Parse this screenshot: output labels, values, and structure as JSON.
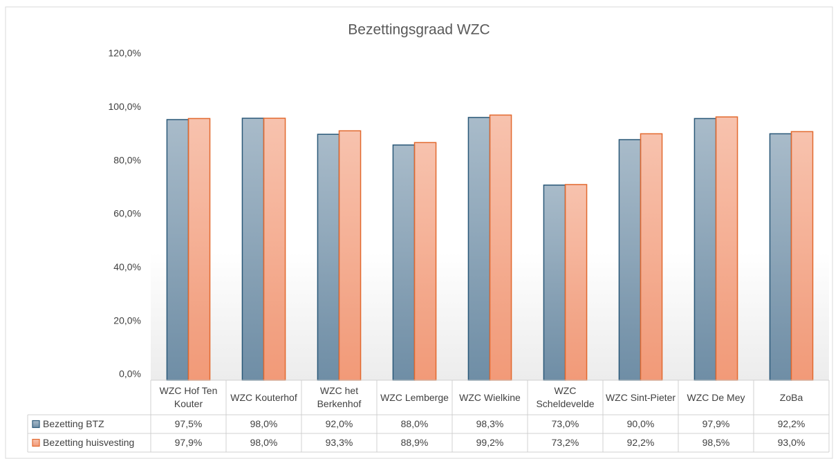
{
  "chart_data": {
    "type": "bar",
    "title": "Bezettingsgraad WZC",
    "categories": [
      "WZC Hof Ten Kouter",
      "WZC Kouterhof",
      "WZC het Berkenhof",
      "WZC Lemberge",
      "WZC Wielkine",
      "WZC Scheldevelde",
      "WZC Sint-Pieter",
      "WZC De Mey",
      "ZoBa"
    ],
    "series": [
      {
        "name": "Bezetting BTZ",
        "color": "#6f8ea6",
        "edge_color": "#2a5878",
        "values": [
          97.5,
          98.0,
          92.0,
          88.0,
          98.3,
          73.0,
          90.0,
          97.9,
          92.2
        ],
        "value_labels": [
          "97,5%",
          "98,0%",
          "92,0%",
          "88,0%",
          "98,3%",
          "73,0%",
          "90,0%",
          "97,9%",
          "92,2%"
        ]
      },
      {
        "name": "Bezetting huisvesting",
        "color": "#f29a78",
        "edge_color": "#e2692e",
        "values": [
          97.9,
          98.0,
          93.3,
          88.9,
          99.2,
          73.2,
          92.2,
          98.5,
          93.0
        ],
        "value_labels": [
          "97,9%",
          "98,0%",
          "93,3%",
          "88,9%",
          "99,2%",
          "73,2%",
          "92,2%",
          "98,5%",
          "93,0%"
        ]
      }
    ],
    "ylim": [
      0,
      120
    ],
    "yticks": [
      {
        "value": 0,
        "label": "0,0%"
      },
      {
        "value": 20,
        "label": "20,0%"
      },
      {
        "value": 40,
        "label": "40,0%"
      },
      {
        "value": 60,
        "label": "60,0%"
      },
      {
        "value": 80,
        "label": "80,0%"
      },
      {
        "value": 100,
        "label": "100,0%"
      },
      {
        "value": 120,
        "label": "120,0%"
      }
    ],
    "grid": false
  }
}
